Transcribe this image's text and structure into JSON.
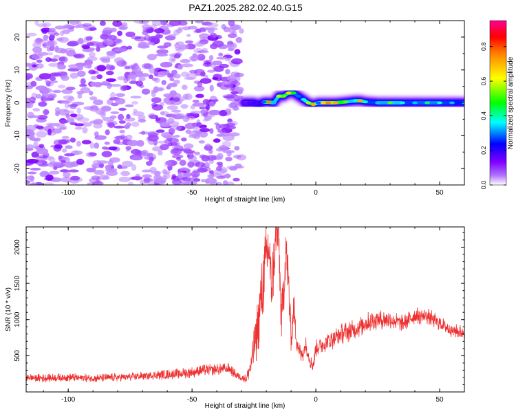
{
  "title": "PAZ1.2025.282.02.40.G15",
  "chart_data": [
    {
      "type": "heatmap",
      "title": "PAZ1.2025.282.02.40.G15",
      "xlabel": "Height of straight line (km)",
      "ylabel": "Frequency (Hz)",
      "xlim": [
        -117,
        60
      ],
      "ylim": [
        -25,
        25
      ],
      "xticks": [
        -100,
        -50,
        0,
        50
      ],
      "xtick_labels": [
        "-100",
        "-50",
        "0",
        "50"
      ],
      "yticks": [
        -20,
        -10,
        0,
        10,
        20
      ],
      "ytick_labels": [
        "-20",
        "-10",
        "0",
        "10",
        "20"
      ],
      "colorbar": {
        "label": "Normalized spectral amplitude",
        "range": [
          0.0,
          0.95
        ],
        "ticks": [
          0.0,
          0.2,
          0.4,
          0.6,
          0.8
        ],
        "tick_labels": [
          "0.0",
          "0.2",
          "0.4",
          "0.6",
          "0.8"
        ],
        "colors": [
          "#ffffff",
          "#8a00ff",
          "#0000ff",
          "#00ffff",
          "#00ff00",
          "#ffff00",
          "#ff8000",
          "#ff0000",
          "#ff0090"
        ]
      },
      "noise_region": {
        "x_range": [
          -117,
          -30
        ],
        "freq_range": [
          -25,
          25
        ],
        "amplitude": 0.05
      },
      "signal_band": {
        "x": [
          -29,
          -27,
          -25,
          -23,
          -21,
          -19,
          -17,
          -15,
          -13,
          -11,
          -9,
          -7,
          -5,
          -3,
          -1,
          1,
          3,
          5,
          8,
          12,
          16,
          18,
          20,
          25,
          30,
          35,
          40,
          45,
          50,
          55,
          60
        ],
        "freq_center": [
          0.0,
          0.0,
          0.0,
          -0.5,
          0.2,
          0.2,
          0.0,
          2.0,
          2.0,
          3.0,
          3.0,
          2.0,
          1.0,
          0.0,
          -0.5,
          0.0,
          0.0,
          0.0,
          0.0,
          0.3,
          0.6,
          0.6,
          0.3,
          0.0,
          0.0,
          0.0,
          0.0,
          0.0,
          0.0,
          0.0,
          0.0
        ],
        "amplitude": [
          0.15,
          0.18,
          0.2,
          0.2,
          0.3,
          0.8,
          0.35,
          0.6,
          0.55,
          0.7,
          0.5,
          0.3,
          0.4,
          0.6,
          0.75,
          0.3,
          0.7,
          0.8,
          0.75,
          0.55,
          0.4,
          0.75,
          0.4,
          0.35,
          0.55,
          0.4,
          0.35,
          0.45,
          0.4,
          0.35,
          0.35
        ]
      }
    },
    {
      "type": "line",
      "xlabel": "Height of straight line (km)",
      "ylabel": "SNR (10 * v/v)",
      "xlim": [
        -117,
        60
      ],
      "ylim": [
        0,
        2280
      ],
      "xticks": [
        -100,
        -50,
        0,
        50
      ],
      "xtick_labels": [
        "-100",
        "-50",
        "0",
        "50"
      ],
      "yticks": [
        500,
        1000,
        1500,
        2000
      ],
      "ytick_labels": [
        "500",
        "1000",
        "1500",
        "2000"
      ],
      "series": [
        {
          "name": "SNR",
          "color": "#ee3030",
          "x": [
            -117,
            -110,
            -100,
            -90,
            -80,
            -70,
            -60,
            -50,
            -45,
            -40,
            -35,
            -32,
            -28,
            -26,
            -24,
            -22,
            -20,
            -19,
            -18,
            -17,
            -16,
            -15,
            -14,
            -13,
            -12,
            -11,
            -10,
            -9,
            -8,
            -7,
            -6,
            -5,
            -4,
            -3,
            -2,
            -1,
            0,
            2,
            5,
            10,
            15,
            20,
            25,
            30,
            35,
            40,
            45,
            50,
            55,
            60
          ],
          "y": [
            200,
            190,
            200,
            190,
            200,
            220,
            240,
            270,
            300,
            310,
            320,
            230,
            180,
            400,
            800,
            1300,
            1850,
            2000,
            1400,
            1750,
            2200,
            2100,
            1000,
            1400,
            2000,
            1500,
            700,
            1200,
            800,
            600,
            500,
            550,
            650,
            520,
            400,
            380,
            600,
            650,
            700,
            800,
            850,
            950,
            1000,
            1000,
            950,
            1050,
            1050,
            950,
            850,
            820
          ],
          "noise": [
            60,
            60,
            60,
            60,
            60,
            60,
            70,
            80,
            80,
            80,
            80,
            60,
            60,
            200,
            400,
            500,
            500,
            500,
            500,
            400,
            400,
            400,
            450,
            450,
            400,
            350,
            250,
            250,
            200,
            150,
            120,
            120,
            120,
            100,
            100,
            100,
            120,
            130,
            150,
            150,
            150,
            150,
            140,
            130,
            120,
            120,
            120,
            110,
            100,
            100
          ]
        }
      ]
    }
  ]
}
